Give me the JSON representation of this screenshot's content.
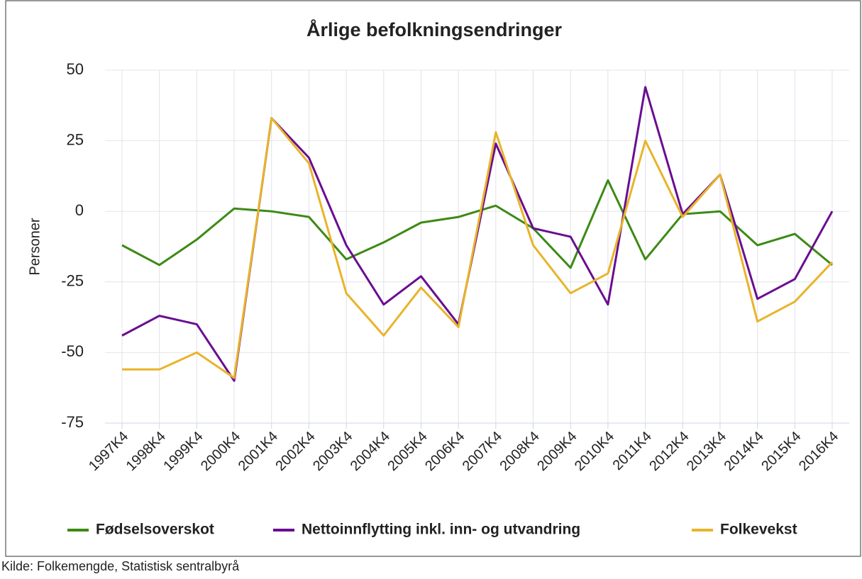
{
  "chart_data": {
    "type": "line",
    "title": "Årlige befolkningsendringer",
    "y_label": "Personer",
    "source": "Kilde: Folkemengde, Statistisk sentralbyrå",
    "categories": [
      "1997K4",
      "1998K4",
      "1999K4",
      "2000K4",
      "2001K4",
      "2002K4",
      "2003K4",
      "2004K4",
      "2005K4",
      "2006K4",
      "2007K4",
      "2008K4",
      "2009K4",
      "2010K4",
      "2011K4",
      "2012K4",
      "2013K4",
      "2014K4",
      "2015K4",
      "2016K4"
    ],
    "series": [
      {
        "name": "Fødselsoverskot",
        "color": "#3c8a14",
        "values": [
          -12,
          -19,
          -10,
          1,
          0,
          -2,
          -17,
          -11,
          -4,
          -2,
          2,
          -6,
          -20,
          11,
          -17,
          -1,
          0,
          -12,
          -8,
          -19
        ]
      },
      {
        "name": "Nettoinnflytting inkl. inn- og utvandring",
        "color": "#6a0d91",
        "values": [
          -44,
          -37,
          -40,
          -60,
          33,
          19,
          -12,
          -33,
          -23,
          -40,
          24,
          -6,
          -9,
          -33,
          44,
          -1,
          13,
          -31,
          -24,
          0
        ]
      },
      {
        "name": "Folkevekst",
        "color": "#e8b42a",
        "values": [
          -56,
          -56,
          -50,
          -59,
          33,
          17,
          -29,
          -44,
          -27,
          -41,
          28,
          -12,
          -29,
          -22,
          25,
          -2,
          13,
          -39,
          -32,
          -18
        ]
      }
    ],
    "ylim": [
      -75,
      50
    ],
    "yticks": [
      -75,
      -50,
      -25,
      0,
      25,
      50
    ],
    "grid": true,
    "legend": "bottom"
  }
}
